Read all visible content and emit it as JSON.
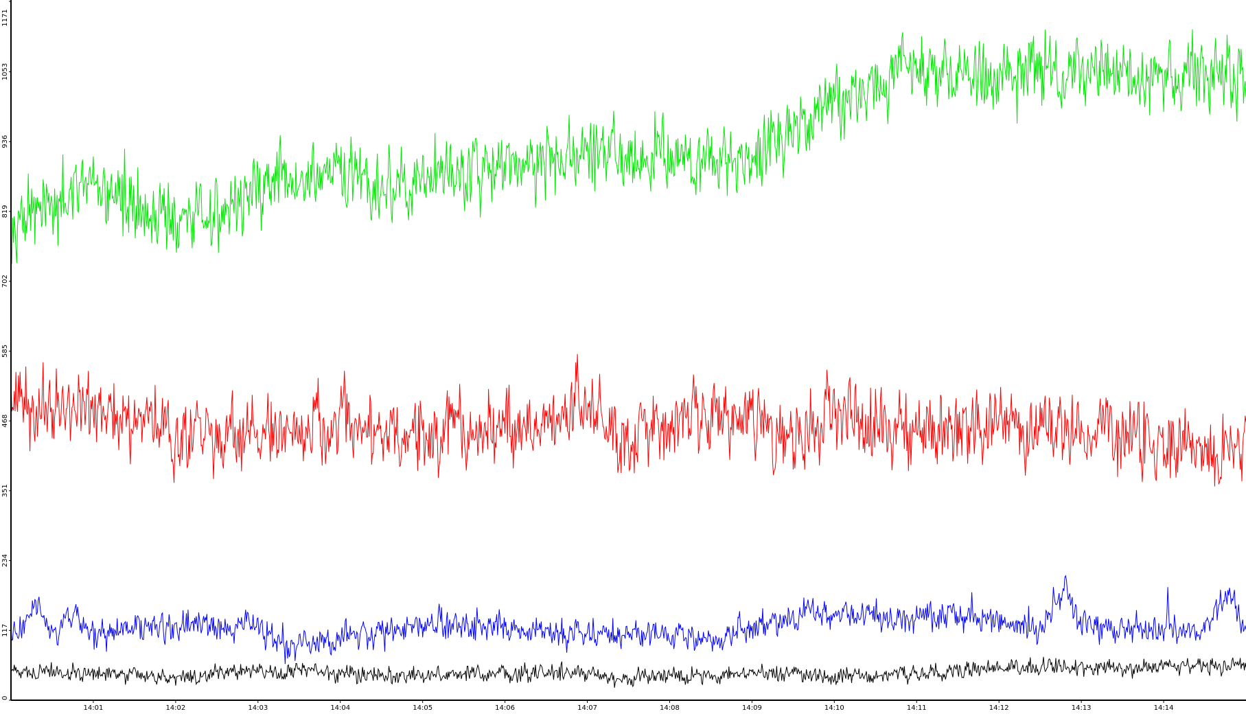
{
  "chart_data": {
    "type": "line",
    "title": "",
    "xlabel": "",
    "ylabel": "",
    "ylim": [
      0,
      1171
    ],
    "y_ticks": [
      0,
      117,
      234,
      351,
      468,
      585,
      702,
      819,
      936,
      1053,
      1171
    ],
    "x_ticks": [
      "14:01",
      "14:02",
      "14:03",
      "14:04",
      "14:05",
      "14:06",
      "14:07",
      "14:08",
      "14:09",
      "14:10",
      "14:11",
      "14:12",
      "14:13",
      "14:14"
    ],
    "x_range_minutes": [
      0,
      15
    ],
    "grid": false,
    "legend": "none",
    "series": [
      {
        "color": "#00e600",
        "noise": 38,
        "anchors_x": [
          0,
          0.5,
          1.0,
          1.5,
          2.0,
          2.5,
          3.0,
          3.5,
          4.0,
          4.5,
          5.0,
          5.5,
          6.0,
          6.5,
          7.0,
          7.5,
          8.0,
          8.5,
          9.0,
          9.5,
          10.0,
          10.5,
          11.0,
          11.5,
          12.0,
          12.5,
          13.0,
          13.5,
          14.0,
          14.5,
          15.0
        ],
        "anchors_y": [
          810,
          820,
          860,
          820,
          800,
          815,
          860,
          870,
          880,
          860,
          870,
          885,
          900,
          905,
          920,
          910,
          920,
          910,
          900,
          960,
          1000,
          1030,
          1060,
          1050,
          1040,
          1060,
          1050,
          1050,
          1050,
          1045,
          1040
        ]
      },
      {
        "color": "#ff0000",
        "noise": 40,
        "anchors_x": [
          0,
          0.5,
          1.0,
          1.5,
          2.0,
          2.5,
          3.0,
          3.5,
          4.0,
          4.5,
          5.0,
          5.5,
          6.0,
          6.5,
          7.0,
          7.5,
          8.0,
          8.5,
          9.0,
          9.5,
          10.0,
          10.5,
          11.0,
          11.5,
          12.0,
          12.5,
          13.0,
          13.5,
          14.0,
          14.5,
          15.0
        ],
        "anchors_y": [
          500,
          495,
          480,
          475,
          455,
          440,
          445,
          460,
          470,
          445,
          440,
          455,
          460,
          465,
          495,
          430,
          445,
          480,
          460,
          450,
          470,
          465,
          450,
          460,
          465,
          455,
          455,
          445,
          430,
          430,
          430
        ]
      },
      {
        "color": "#0000ff",
        "noise": 16,
        "anchors_x": [
          0,
          0.2,
          0.3,
          0.45,
          0.6,
          0.8,
          1.0,
          2.0,
          3.0,
          3.2,
          4.0,
          5.0,
          6.0,
          7.0,
          8.0,
          8.6,
          9.0,
          9.5,
          10.0,
          11.0,
          12.0,
          12.5,
          12.8,
          13.0,
          14.0,
          14.5,
          14.8,
          15.0
        ],
        "anchors_y": [
          115,
          130,
          165,
          115,
          110,
          150,
          110,
          125,
          125,
          95,
          105,
          125,
          125,
          110,
          110,
          100,
          120,
          140,
          145,
          140,
          135,
          115,
          190,
          125,
          120,
          120,
          185,
          115
        ]
      },
      {
        "color": "#000000",
        "noise": 9,
        "anchors_x": [
          0,
          1.0,
          2.0,
          3.0,
          4.0,
          5.0,
          6.0,
          7.0,
          7.5,
          8.0,
          9.0,
          10.0,
          11.0,
          12.0,
          13.0,
          14.0,
          15.0
        ],
        "anchors_y": [
          50,
          45,
          40,
          50,
          45,
          40,
          45,
          45,
          35,
          40,
          45,
          40,
          45,
          55,
          55,
          55,
          60
        ]
      }
    ]
  }
}
